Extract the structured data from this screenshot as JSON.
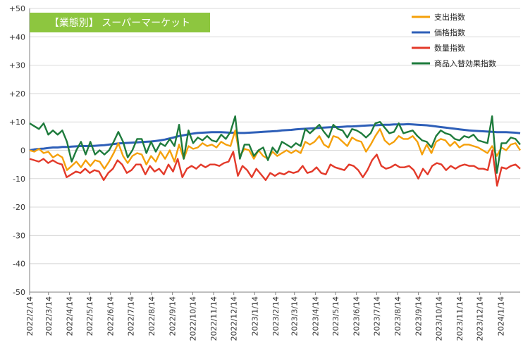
{
  "chart_data": {
    "type": "line",
    "title": "【業態別】 スーパーマーケット",
    "title_bg_color": "#8dc63f",
    "ylim": [
      -50,
      50
    ],
    "y_ticks": [
      "+50",
      "+40",
      "+30",
      "+20",
      "+10",
      "0",
      "-10",
      "-20",
      "-30",
      "-40",
      "-50"
    ],
    "x_tick_labels": [
      "2022/2/14",
      "2022/3/14",
      "2022/4/14",
      "2022/5/14",
      "2022/6/14",
      "2022/7/14",
      "2022/8/14",
      "2022/9/14",
      "2022/10/14",
      "2022/11/14",
      "2022/12/14",
      "2023/1/14",
      "2023/2/14",
      "2023/3/14",
      "2023/4/14",
      "2023/5/14",
      "2023/6/14",
      "2023/7/14",
      "2023/8/14",
      "2023/9/14",
      "2023/10/14",
      "2023/11/14",
      "2023/12/14",
      "2024/1/14"
    ],
    "x_start": "2022-02-14",
    "x_end": "2024-02-12",
    "legend_position": "top-right",
    "grid": true,
    "series": [
      {
        "name": "支出指数",
        "color": "#f5a00a",
        "values": [
          0,
          -0.5,
          0.5,
          -1,
          -0.5,
          -2.5,
          -1.5,
          -2.5,
          -7,
          -5.5,
          -4,
          -6,
          -3.5,
          -5.5,
          -3.5,
          -4,
          -6.5,
          -4,
          -1,
          2.5,
          -2,
          -4.5,
          -2,
          -1,
          -1.5,
          -5,
          -2,
          -4,
          -0.5,
          -3,
          0,
          -4,
          2,
          -3,
          1.5,
          0.5,
          1,
          2.5,
          1.5,
          2,
          1,
          3,
          2,
          1.5,
          7,
          -2,
          0.5,
          0,
          -3,
          0,
          -2,
          -3,
          -0.5,
          -2,
          -1,
          0,
          -1,
          0,
          -1,
          3,
          2,
          3,
          5,
          2,
          1,
          5,
          4.5,
          3,
          1.5,
          4.5,
          3.5,
          3,
          -0.5,
          2,
          5,
          7.5,
          3.5,
          2,
          3,
          5,
          4,
          4,
          5,
          3,
          -1.5,
          2,
          -1,
          3,
          4,
          3.5,
          1.5,
          3,
          1,
          2,
          2,
          1.5,
          1,
          0,
          -1,
          1.5,
          -2,
          1,
          0,
          2,
          2.5,
          0
        ]
      },
      {
        "name": "価格指数",
        "color": "#2e5fb8",
        "values": [
          0,
          0.3,
          0.5,
          0.6,
          0.8,
          1,
          1,
          1.2,
          1.2,
          1.3,
          1.4,
          1.5,
          1.5,
          1.5,
          1.6,
          1.7,
          1.8,
          2,
          2.2,
          2.4,
          2.5,
          2.6,
          2.7,
          2.8,
          2.9,
          3,
          3.1,
          3.3,
          3.5,
          3.8,
          4.2,
          4.6,
          5,
          5.3,
          5.6,
          5.9,
          6.1,
          6.2,
          6.3,
          6.4,
          6.4,
          6.4,
          6.3,
          6.2,
          6.2,
          6.1,
          6.1,
          6.2,
          6.3,
          6.4,
          6.5,
          6.6,
          6.7,
          6.8,
          7,
          7.1,
          7.2,
          7.4,
          7.5,
          7.6,
          7.7,
          7.8,
          7.9,
          8,
          8.1,
          8.2,
          8.2,
          8.3,
          8.4,
          8.4,
          8.5,
          8.6,
          8.7,
          8.8,
          8.8,
          8.9,
          9,
          9,
          9.1,
          9.1,
          9.1,
          9.2,
          9.1,
          9,
          8.9,
          8.8,
          8.6,
          8.4,
          8.2,
          8,
          7.8,
          7.6,
          7.4,
          7.2,
          7,
          6.9,
          6.8,
          6.7,
          6.6,
          6.5,
          6.4,
          6.4,
          6.4,
          6.3,
          6.2,
          6
        ]
      },
      {
        "name": "数量指数",
        "color": "#e33a2a",
        "values": [
          -3,
          -3.5,
          -4,
          -3,
          -4.5,
          -3.5,
          -4.5,
          -5,
          -9.5,
          -8.5,
          -7.5,
          -8,
          -6.5,
          -8,
          -7,
          -7.5,
          -10.5,
          -8,
          -6.5,
          -3.5,
          -5,
          -8,
          -7,
          -5,
          -5,
          -8.5,
          -5.5,
          -7.5,
          -6.5,
          -8.5,
          -5,
          -7.5,
          -3,
          -9.5,
          -6.5,
          -5.5,
          -6.5,
          -5,
          -6,
          -5,
          -5,
          -5.5,
          -4.5,
          -4,
          -0.5,
          -9,
          -5.5,
          -7,
          -9.5,
          -6.5,
          -8.5,
          -10.5,
          -8,
          -9,
          -8,
          -8.5,
          -7.5,
          -8,
          -7.5,
          -5.5,
          -8,
          -7.5,
          -6,
          -8,
          -8.5,
          -5,
          -6,
          -6.5,
          -7,
          -5,
          -5.5,
          -7,
          -9.5,
          -7,
          -3.5,
          -1.5,
          -5.5,
          -6.5,
          -6,
          -5,
          -6,
          -6,
          -5.5,
          -7,
          -10,
          -6.5,
          -8.5,
          -5.5,
          -4.5,
          -5,
          -7,
          -5.5,
          -6.5,
          -5.5,
          -5,
          -5.5,
          -5.5,
          -6.5,
          -6.5,
          -7,
          0,
          -12.5,
          -6,
          -6.5,
          -5.5,
          -5,
          -6.5
        ]
      },
      {
        "name": "商品入替効果指数",
        "color": "#1e7b3c",
        "values": [
          9.5,
          8.5,
          7.5,
          9.5,
          5.5,
          7,
          5.5,
          7,
          3,
          -4,
          0,
          3,
          -1.5,
          3,
          -1.5,
          0,
          -1.5,
          0,
          3,
          6.5,
          3,
          -2.5,
          0,
          4,
          4,
          -1,
          3,
          -0.5,
          2.5,
          1.5,
          4,
          1.5,
          9,
          -3,
          7,
          2.5,
          4.5,
          3.5,
          5,
          3.5,
          3,
          5.5,
          4,
          6.5,
          12,
          -3,
          2,
          2,
          -2,
          0,
          1,
          -3.5,
          1,
          -1,
          3,
          2,
          1,
          2.5,
          1.5,
          7.5,
          6,
          7.5,
          9,
          6.5,
          4.5,
          9,
          7.5,
          7,
          4.5,
          7.5,
          7,
          6,
          4.5,
          6,
          9.5,
          10,
          8,
          6,
          6.5,
          9.5,
          6,
          6.5,
          7,
          5,
          3.5,
          3,
          1,
          5,
          7,
          6,
          5.5,
          4,
          3.5,
          5,
          4.5,
          5.5,
          3.5,
          3,
          2.5,
          12,
          -8,
          2.5,
          2.5,
          4.5,
          4,
          2
        ]
      }
    ]
  }
}
